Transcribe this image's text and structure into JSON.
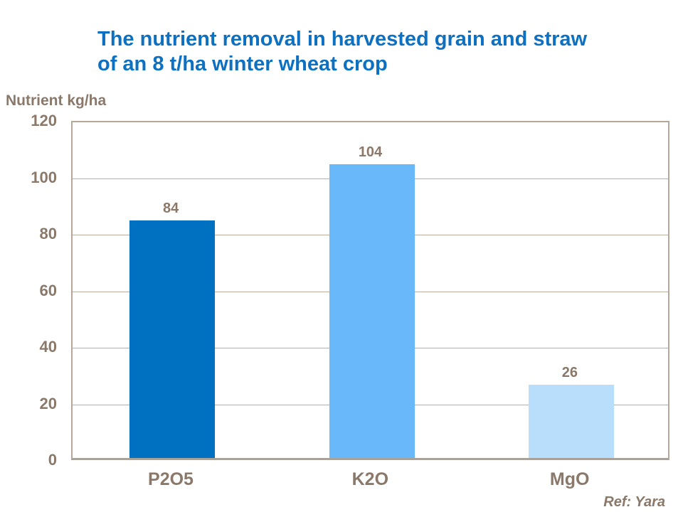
{
  "title": {
    "line1": "The nutrient removal in harvested grain and straw",
    "line2": "of an 8 t/ha winter wheat crop"
  },
  "ref_note": "Ref: Yara",
  "colors": {
    "title_blue": "#0D70C0",
    "label_brown": "#8A796A",
    "axis_border": "#B3A89B",
    "gridline": "#B9AE9F"
  },
  "chart_data": {
    "type": "bar",
    "title": "The nutrient removal in harvested grain and straw of an 8 t/ha winter wheat crop",
    "ylabel": "Nutrient kg/ha",
    "categories": [
      "P2O5",
      "K2O",
      "MgO"
    ],
    "values": [
      84,
      104,
      26
    ],
    "data_labels": [
      "84",
      "104",
      "26"
    ],
    "bar_colors": [
      "#0070C0",
      "#69B9FA",
      "#B9DEFB"
    ],
    "ylim": [
      0,
      120
    ],
    "yticks": [
      0,
      20,
      40,
      60,
      80,
      100,
      120
    ],
    "grid": true,
    "legend": false,
    "source": "Ref: Yara"
  }
}
